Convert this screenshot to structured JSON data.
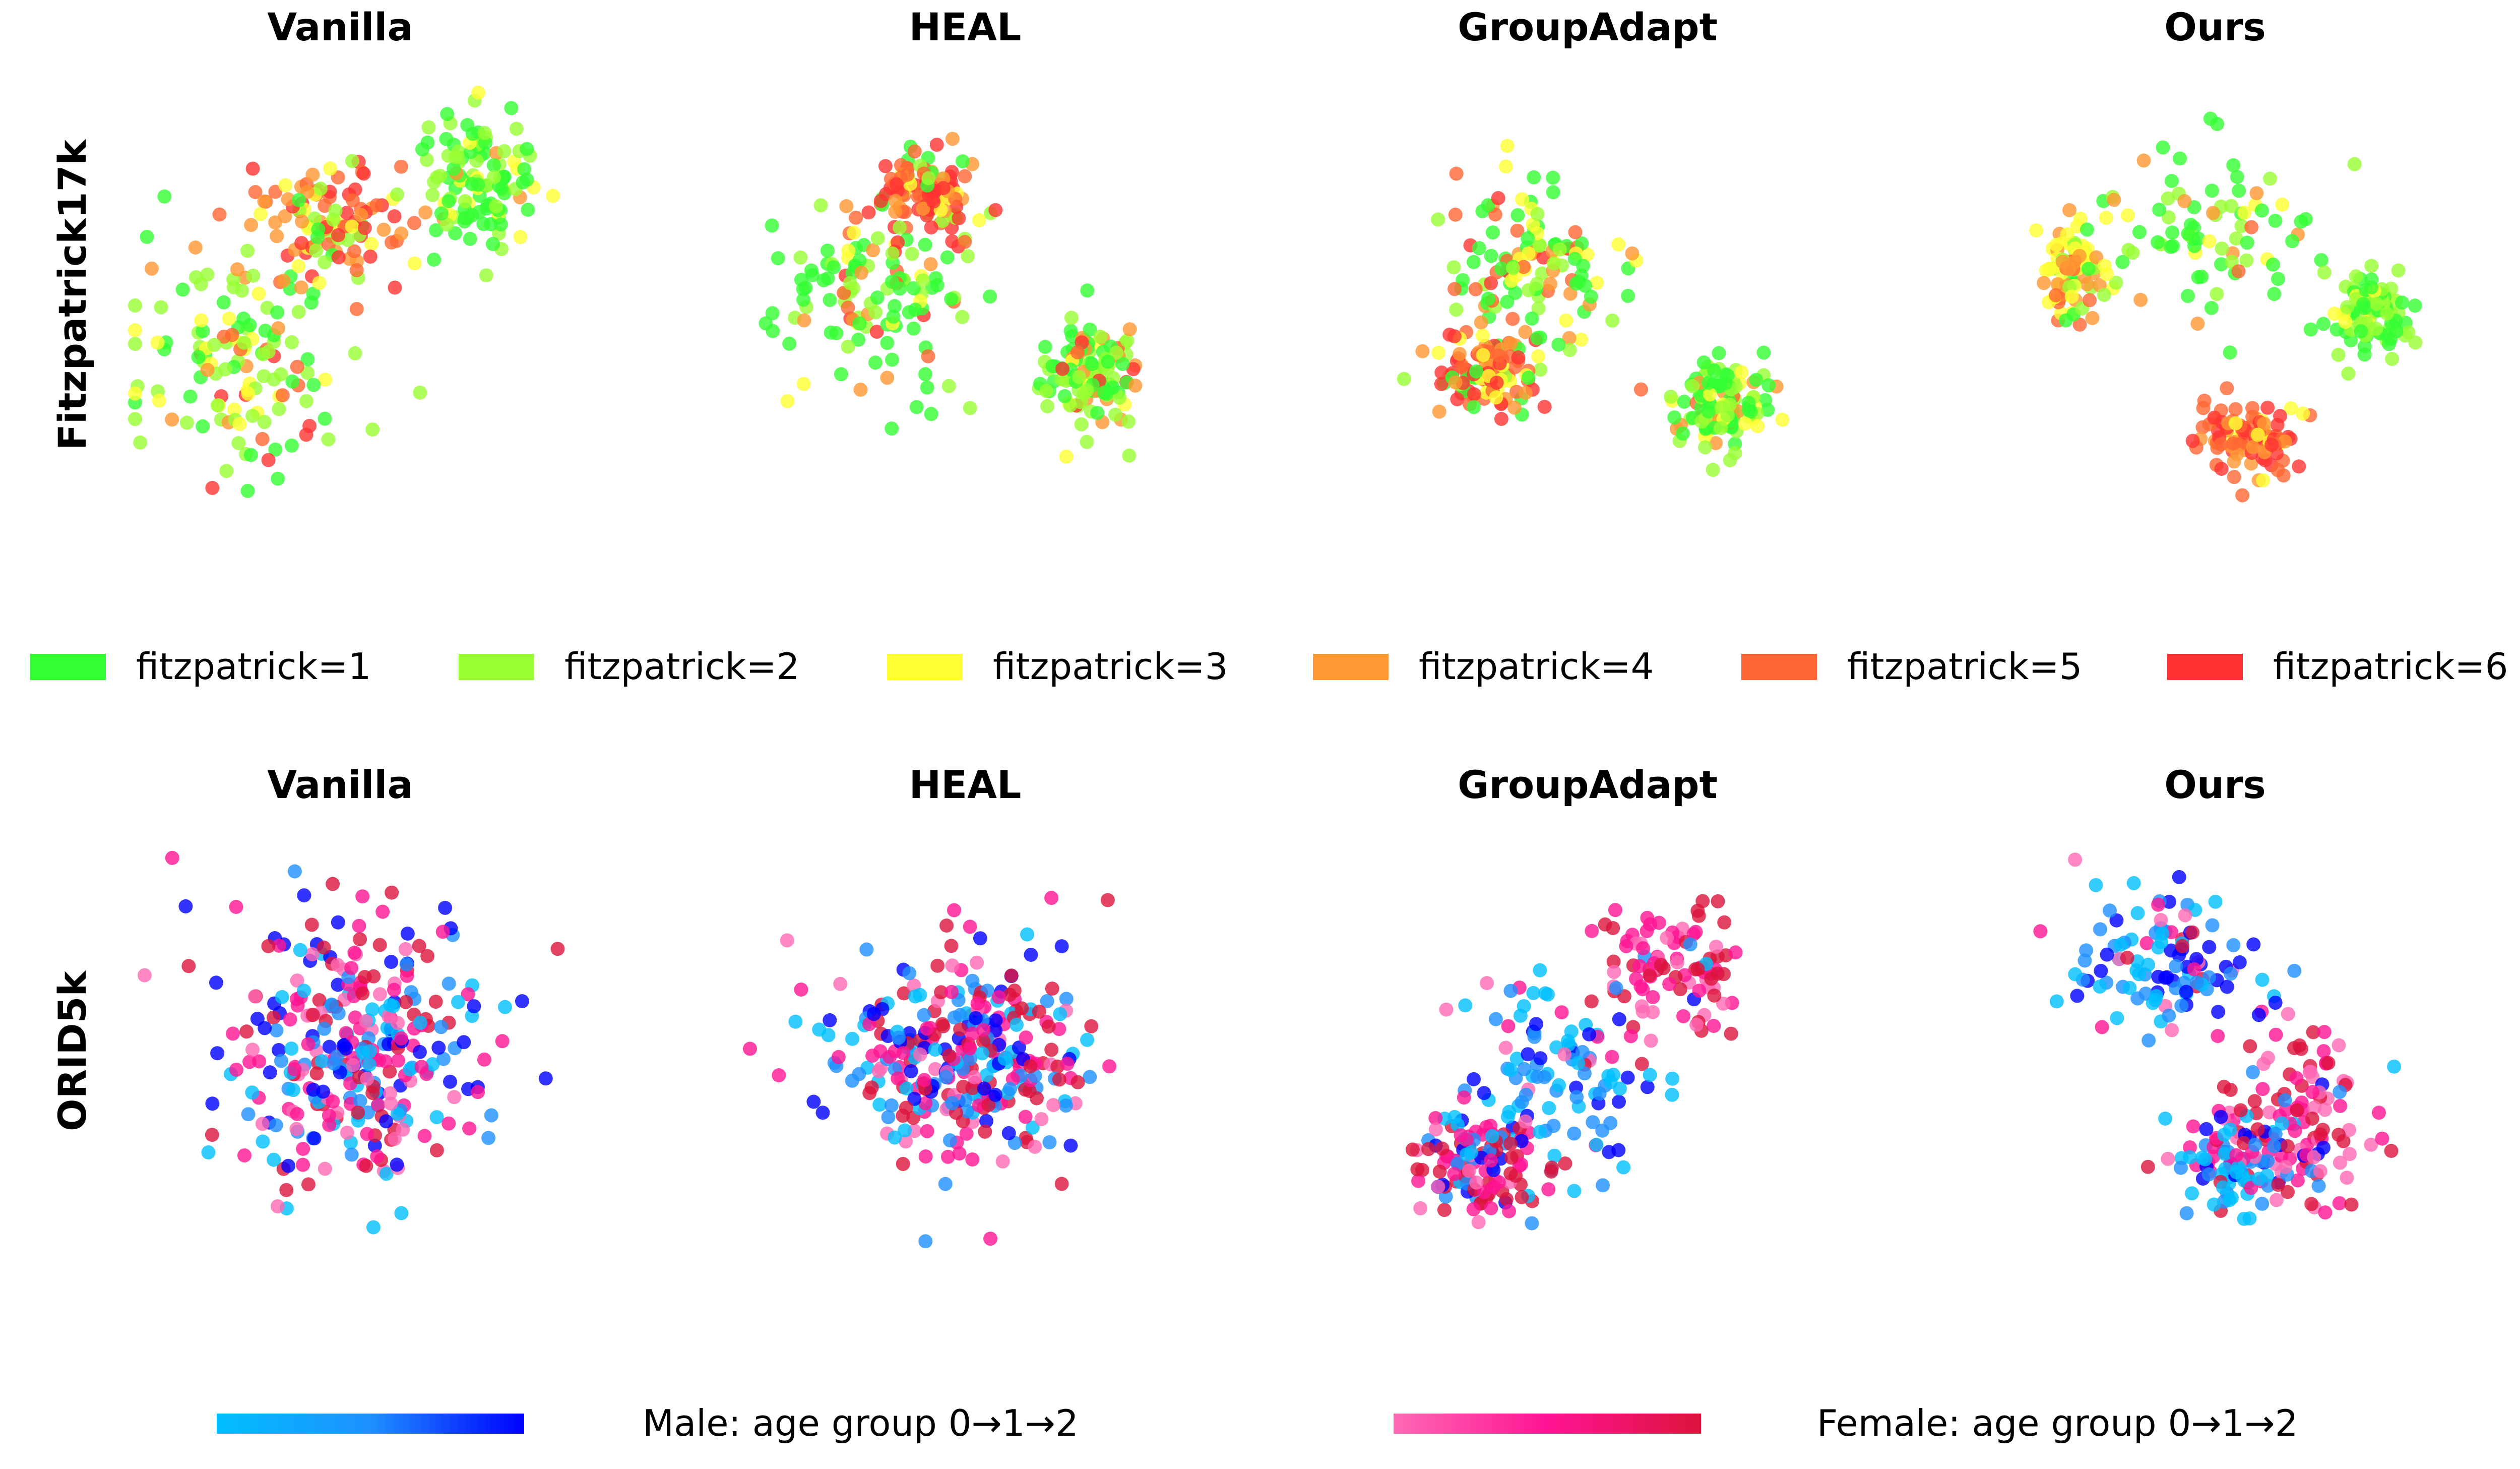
{
  "figure": {
    "row_labels": [
      "Fitzpatrick17k",
      "ORID5k"
    ],
    "top_titles": [
      "Vanilla",
      "HEAL",
      "GroupAdapt",
      "Ours"
    ],
    "bottom_titles": [
      "Vanilla",
      "HEAL",
      "GroupAdapt",
      "Ours"
    ]
  },
  "legend_fitz": [
    {
      "label": "fitzpatrick=1",
      "color": "#33ff33"
    },
    {
      "label": "fitzpatrick=2",
      "color": "#99ff33"
    },
    {
      "label": "fitzpatrick=3",
      "color": "#ffff33"
    },
    {
      "label": "fitzpatrick=4",
      "color": "#ff9933"
    },
    {
      "label": "fitzpatrick=5",
      "color": "#ff6633"
    },
    {
      "label": "fitzpatrick=6",
      "color": "#ff3333"
    }
  ],
  "legend_age": [
    {
      "label": "Male: age group 0→1→2",
      "gradient": [
        "#00bfff",
        "#1e90ff",
        "#0000ff"
      ]
    },
    {
      "label": "Female: age group 0→1→2",
      "gradient": [
        "#ff69b4",
        "#ff1493",
        "#dc143c"
      ]
    }
  ],
  "chart_data": [
    {
      "type": "scatter",
      "dataset": "Fitzpatrick17k",
      "title": "Vanilla",
      "color_by": "fitzpatrick",
      "point_count": 360,
      "clusters": [
        {
          "cx": 0.25,
          "cy": 0.65,
          "sx": 0.22,
          "sy": 0.22,
          "weights": [
            0.3,
            0.35,
            0.15,
            0.1,
            0.05,
            0.05
          ]
        },
        {
          "cx": 0.45,
          "cy": 0.35,
          "sx": 0.16,
          "sy": 0.12,
          "weights": [
            0.05,
            0.1,
            0.1,
            0.2,
            0.3,
            0.25
          ]
        },
        {
          "cx": 0.78,
          "cy": 0.25,
          "sx": 0.12,
          "sy": 0.14,
          "weights": [
            0.55,
            0.3,
            0.1,
            0.05,
            0,
            0
          ]
        }
      ],
      "axis": "off"
    },
    {
      "type": "scatter",
      "dataset": "Fitzpatrick17k",
      "title": "HEAL",
      "color_by": "fitzpatrick",
      "point_count": 360,
      "clusters": [
        {
          "cx": 0.3,
          "cy": 0.5,
          "sx": 0.2,
          "sy": 0.2,
          "weights": [
            0.4,
            0.3,
            0.1,
            0.1,
            0.05,
            0.05
          ]
        },
        {
          "cx": 0.42,
          "cy": 0.28,
          "sx": 0.1,
          "sy": 0.08,
          "weights": [
            0.05,
            0.05,
            0.05,
            0.15,
            0.35,
            0.35
          ]
        },
        {
          "cx": 0.78,
          "cy": 0.68,
          "sx": 0.1,
          "sy": 0.1,
          "weights": [
            0.35,
            0.35,
            0.1,
            0.1,
            0.05,
            0.05
          ]
        }
      ],
      "axis": "off"
    },
    {
      "type": "scatter",
      "dataset": "Fitzpatrick17k",
      "title": "GroupAdapt",
      "color_by": "fitzpatrick",
      "point_count": 360,
      "clusters": [
        {
          "cx": 0.38,
          "cy": 0.45,
          "sx": 0.18,
          "sy": 0.2,
          "weights": [
            0.35,
            0.2,
            0.2,
            0.1,
            0.1,
            0.05
          ]
        },
        {
          "cx": 0.28,
          "cy": 0.68,
          "sx": 0.1,
          "sy": 0.08,
          "weights": [
            0.1,
            0.1,
            0.1,
            0.2,
            0.25,
            0.25
          ]
        },
        {
          "cx": 0.8,
          "cy": 0.75,
          "sx": 0.09,
          "sy": 0.09,
          "weights": [
            0.4,
            0.3,
            0.15,
            0.05,
            0.05,
            0.05
          ]
        }
      ],
      "axis": "off"
    },
    {
      "type": "scatter",
      "dataset": "Fitzpatrick17k",
      "title": "Ours",
      "color_by": "fitzpatrick",
      "point_count": 360,
      "clusters": [
        {
          "cx": 0.5,
          "cy": 0.35,
          "sx": 0.22,
          "sy": 0.18,
          "weights": [
            0.5,
            0.3,
            0.12,
            0.05,
            0.03,
            0
          ]
        },
        {
          "cx": 0.2,
          "cy": 0.45,
          "sx": 0.08,
          "sy": 0.1,
          "weights": [
            0.1,
            0.1,
            0.35,
            0.25,
            0.2,
            0
          ]
        },
        {
          "cx": 0.58,
          "cy": 0.82,
          "sx": 0.12,
          "sy": 0.07,
          "weights": [
            0,
            0,
            0.05,
            0.2,
            0.35,
            0.4
          ]
        },
        {
          "cx": 0.85,
          "cy": 0.55,
          "sx": 0.08,
          "sy": 0.1,
          "weights": [
            0.4,
            0.5,
            0.1,
            0,
            0,
            0
          ]
        }
      ],
      "axis": "off"
    },
    {
      "type": "scatter",
      "dataset": "ORID5k",
      "title": "Vanilla",
      "color_by": "sex_age",
      "point_count": 320,
      "clusters": [
        {
          "cx": 0.5,
          "cy": 0.5,
          "sx": 0.25,
          "sy": 0.25,
          "weights": [
            0.15,
            0.18,
            0.17,
            0.1,
            0.2,
            0.2
          ]
        }
      ],
      "axis": "off"
    },
    {
      "type": "scatter",
      "dataset": "ORID5k",
      "title": "HEAL",
      "color_by": "sex_age",
      "point_count": 320,
      "clusters": [
        {
          "cx": 0.5,
          "cy": 0.52,
          "sx": 0.26,
          "sy": 0.2,
          "weights": [
            0.15,
            0.18,
            0.15,
            0.1,
            0.22,
            0.2
          ]
        }
      ],
      "axis": "off"
    },
    {
      "type": "scatter",
      "dataset": "ORID5k",
      "title": "GroupAdapt",
      "color_by": "sex_age",
      "point_count": 320,
      "clusters": [
        {
          "cx": 0.42,
          "cy": 0.55,
          "sx": 0.2,
          "sy": 0.2,
          "weights": [
            0.3,
            0.3,
            0.2,
            0.05,
            0.08,
            0.07
          ]
        },
        {
          "cx": 0.7,
          "cy": 0.3,
          "sx": 0.14,
          "sy": 0.14,
          "weights": [
            0.02,
            0.03,
            0.02,
            0.25,
            0.35,
            0.33
          ]
        },
        {
          "cx": 0.25,
          "cy": 0.75,
          "sx": 0.12,
          "sy": 0.1,
          "weights": [
            0.1,
            0.1,
            0.1,
            0.15,
            0.25,
            0.3
          ]
        }
      ],
      "axis": "off"
    },
    {
      "type": "scatter",
      "dataset": "ORID5k",
      "title": "Ours",
      "color_by": "sex_age",
      "point_count": 320,
      "clusters": [
        {
          "cx": 0.38,
          "cy": 0.3,
          "sx": 0.18,
          "sy": 0.14,
          "weights": [
            0.3,
            0.3,
            0.25,
            0.05,
            0.05,
            0.05
          ]
        },
        {
          "cx": 0.7,
          "cy": 0.62,
          "sx": 0.16,
          "sy": 0.18,
          "weights": [
            0.05,
            0.05,
            0.05,
            0.25,
            0.3,
            0.3
          ]
        },
        {
          "cx": 0.55,
          "cy": 0.75,
          "sx": 0.14,
          "sy": 0.1,
          "weights": [
            0.3,
            0.25,
            0.1,
            0.1,
            0.15,
            0.1
          ]
        }
      ],
      "axis": "off"
    }
  ]
}
